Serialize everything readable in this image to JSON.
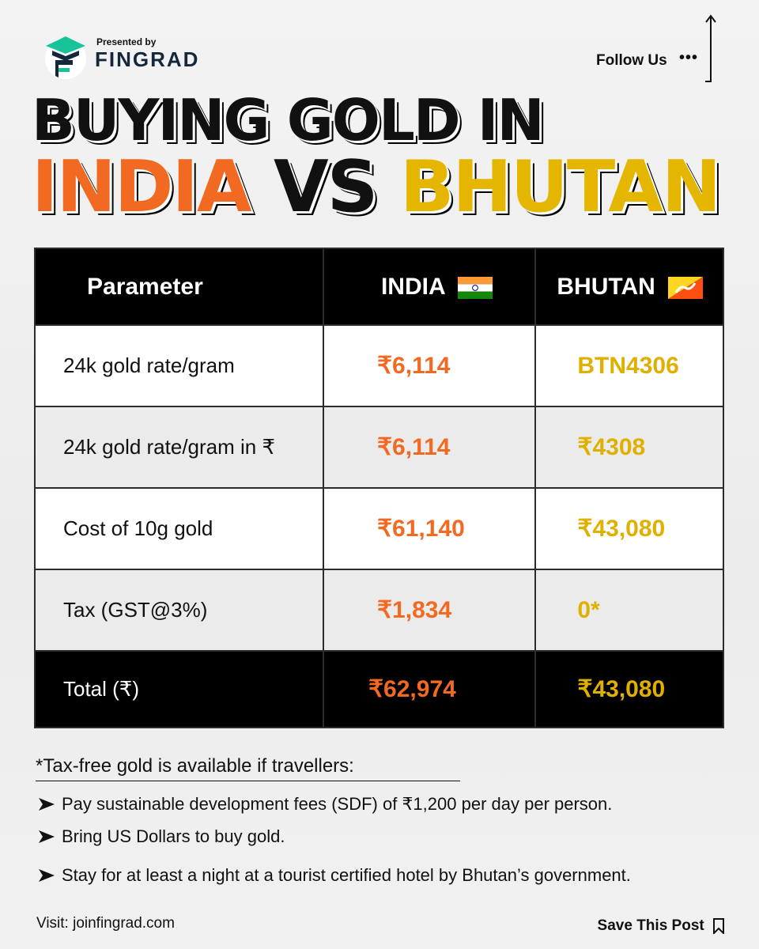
{
  "brand": {
    "presented_by": "Presented by",
    "name": "FINGRAD"
  },
  "follow": {
    "label": "Follow Us",
    "dots": "•••"
  },
  "title": {
    "line1": "BUYING GOLD IN",
    "india": "INDIA",
    "vs": "VS",
    "bhutan": "BHUTAN"
  },
  "colors": {
    "india_orange": "#f26a21",
    "bhutan_yellow": "#e0b000",
    "header_black": "#000000"
  },
  "table": {
    "headers": {
      "parameter": "Parameter",
      "india": "INDIA",
      "bhutan": "BHUTAN"
    },
    "rows": [
      {
        "parameter": "24k gold rate/gram",
        "india": "₹6,114",
        "bhutan": "BTN4306"
      },
      {
        "parameter": "24k gold rate/gram in ₹",
        "india": "₹6,114",
        "bhutan": "₹4308"
      },
      {
        "parameter": "Cost of 10g gold",
        "india": "₹61,140",
        "bhutan": "₹43,080"
      },
      {
        "parameter": "Tax (GST@3%)",
        "india": "₹1,834",
        "bhutan": "0*"
      }
    ],
    "total": {
      "parameter": "Total (₹)",
      "india": "₹62,974",
      "bhutan": "₹43,080"
    }
  },
  "note": {
    "title": "*Tax-free gold is available if travellers:",
    "bullets": [
      "Pay sustainable development fees (SDF) of ₹1,200 per day per person.",
      "Bring US Dollars to buy gold.",
      "Stay for at least a night at a tourist certified hotel by Bhutan’s government."
    ]
  },
  "footer": {
    "visit": "Visit: joinfingrad.com",
    "save": "Save This Post"
  },
  "icons": [
    "fingrad-logo-icon",
    "up-arrow-icon",
    "india-flag-icon",
    "bhutan-flag-icon",
    "bullet-arrow-icon",
    "bookmark-icon"
  ]
}
